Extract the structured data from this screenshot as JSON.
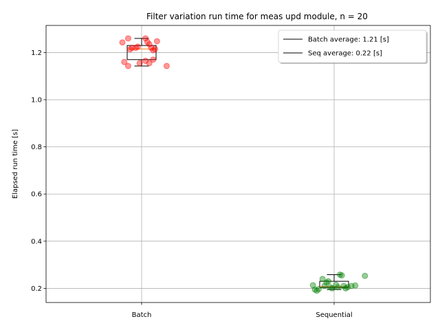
{
  "chart_data": {
    "type": "box-strip",
    "title": "Filter variation run time for meas upd module, n = 20",
    "xlabel": "",
    "ylabel": "Elapsed run time [s]",
    "categories": [
      "Batch",
      "Sequential"
    ],
    "ylim": [
      0.14,
      1.315
    ],
    "yticks": [
      "0.2",
      "0.4",
      "0.6",
      "0.8",
      "1.0",
      "1.2"
    ],
    "grid": true,
    "legend_position": "top-right",
    "legend": [
      {
        "label": "Batch average: 1.21 [s]",
        "color": "#000000"
      },
      {
        "label": "Seq average: 0.22 [s]",
        "color": "#000000"
      }
    ],
    "series": [
      {
        "category": "Batch",
        "point_color": "#ff0000",
        "median_color": "#ff7f0e",
        "box": {
          "q1": 1.17,
          "median": 1.215,
          "q3": 1.23,
          "whisker_low": 1.143,
          "whisker_high": 1.26
        },
        "points": [
          {
            "offset": -0.1,
            "value": 1.243
          },
          {
            "offset": -0.07,
            "value": 1.26
          },
          {
            "offset": -0.06,
            "value": 1.214
          },
          {
            "offset": -0.05,
            "value": 1.22
          },
          {
            "offset": -0.03,
            "value": 1.22
          },
          {
            "offset": -0.02,
            "value": 1.225
          },
          {
            "offset": 0.02,
            "value": 1.26
          },
          {
            "offset": 0.03,
            "value": 1.245
          },
          {
            "offset": 0.04,
            "value": 1.235
          },
          {
            "offset": 0.05,
            "value": 1.22
          },
          {
            "offset": 0.06,
            "value": 1.21
          },
          {
            "offset": 0.07,
            "value": 1.215
          },
          {
            "offset": 0.08,
            "value": 1.248
          },
          {
            "offset": -0.09,
            "value": 1.16
          },
          {
            "offset": -0.07,
            "value": 1.143
          },
          {
            "offset": -0.01,
            "value": 1.155
          },
          {
            "offset": 0.02,
            "value": 1.165
          },
          {
            "offset": 0.04,
            "value": 1.155
          },
          {
            "offset": 0.06,
            "value": 1.17
          },
          {
            "offset": 0.13,
            "value": 1.143
          }
        ]
      },
      {
        "category": "Sequential",
        "point_color": "#008000",
        "median_color": "#ff7f0e",
        "box": {
          "q1": 0.204,
          "median": 0.207,
          "q3": 0.23,
          "whisker_low": 0.195,
          "whisker_high": 0.258
        },
        "points": [
          {
            "offset": -0.11,
            "value": 0.213
          },
          {
            "offset": -0.1,
            "value": 0.195
          },
          {
            "offset": -0.09,
            "value": 0.19
          },
          {
            "offset": -0.08,
            "value": 0.197
          },
          {
            "offset": -0.06,
            "value": 0.24
          },
          {
            "offset": -0.05,
            "value": 0.21
          },
          {
            "offset": -0.04,
            "value": 0.225
          },
          {
            "offset": -0.03,
            "value": 0.23
          },
          {
            "offset": -0.02,
            "value": 0.205
          },
          {
            "offset": -0.01,
            "value": 0.2
          },
          {
            "offset": 0.01,
            "value": 0.215
          },
          {
            "offset": 0.02,
            "value": 0.205
          },
          {
            "offset": 0.03,
            "value": 0.258
          },
          {
            "offset": 0.04,
            "value": 0.255
          },
          {
            "offset": 0.05,
            "value": 0.21
          },
          {
            "offset": 0.06,
            "value": 0.2
          },
          {
            "offset": 0.07,
            "value": 0.205
          },
          {
            "offset": 0.09,
            "value": 0.21
          },
          {
            "offset": 0.11,
            "value": 0.212
          },
          {
            "offset": 0.16,
            "value": 0.253
          }
        ]
      }
    ]
  }
}
